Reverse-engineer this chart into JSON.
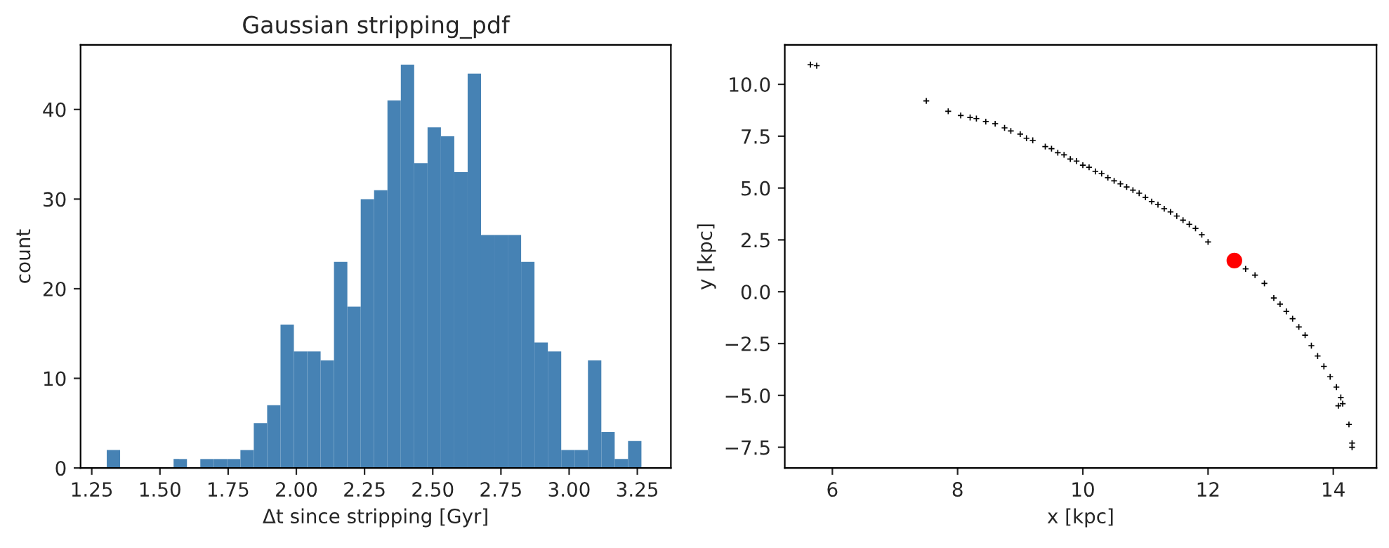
{
  "chart_data": [
    {
      "type": "histogram",
      "title": "Gaussian stripping_pdf",
      "xlabel": "Δt since stripping [Gyr]",
      "ylabel": "count",
      "color": "#4682b4",
      "bins": [
        1.305,
        1.354,
        1.403,
        1.452,
        1.501,
        1.55,
        1.599,
        1.648,
        1.697,
        1.746,
        1.795,
        1.844,
        1.893,
        1.942,
        1.991,
        2.04,
        2.089,
        2.138,
        2.187,
        2.236,
        2.285,
        2.334,
        2.383,
        2.432,
        2.481,
        2.53,
        2.579,
        2.628,
        2.677,
        2.726,
        2.775,
        2.824,
        2.873,
        2.922,
        2.971,
        3.02,
        3.069,
        3.118,
        3.167,
        3.216,
        3.265
      ],
      "values": [
        2,
        0,
        0,
        0,
        0,
        1,
        0,
        1,
        1,
        1,
        2,
        5,
        7,
        16,
        13,
        13,
        12,
        23,
        18,
        30,
        31,
        41,
        45,
        34,
        38,
        37,
        33,
        44,
        26,
        26,
        26,
        23,
        14,
        13,
        2,
        2,
        12,
        4,
        1,
        3
      ],
      "xlim": [
        1.209,
        3.373
      ],
      "ylim": [
        0,
        47.2
      ],
      "xticks": [
        {
          "value": 1.25,
          "label": "1.25"
        },
        {
          "value": 1.5,
          "label": "1.50"
        },
        {
          "value": 1.75,
          "label": "1.75"
        },
        {
          "value": 2.0,
          "label": "2.00"
        },
        {
          "value": 2.25,
          "label": "2.25"
        },
        {
          "value": 2.5,
          "label": "2.50"
        },
        {
          "value": 2.75,
          "label": "2.75"
        },
        {
          "value": 3.0,
          "label": "3.00"
        },
        {
          "value": 3.25,
          "label": "3.25"
        }
      ],
      "yticks": [
        0,
        10,
        20,
        30,
        40
      ]
    },
    {
      "type": "scatter",
      "xlabel": "x [kpc]",
      "ylabel": "y [kpc]",
      "series": [
        {
          "color": "#000000",
          "marker": "cross",
          "x": [
            5.65,
            5.75,
            7.5,
            7.85,
            8.05,
            8.2,
            8.3,
            8.45,
            8.6,
            8.75,
            8.85,
            9.0,
            9.1,
            9.2,
            9.4,
            9.5,
            9.6,
            9.7,
            9.8,
            9.9,
            10.0,
            10.1,
            10.2,
            10.3,
            10.4,
            10.5,
            10.6,
            10.7,
            10.8,
            10.9,
            11.0,
            11.1,
            11.2,
            11.3,
            11.4,
            11.5,
            11.6,
            11.7,
            11.8,
            11.9,
            12.0,
            12.6,
            12.75,
            12.9,
            13.05,
            13.15,
            13.25,
            13.35,
            13.45,
            13.55,
            13.65,
            13.75,
            13.85,
            13.95,
            14.05,
            14.12,
            14.15,
            14.08,
            14.25,
            14.3,
            14.3
          ],
          "values": [
            10.95,
            10.9,
            9.2,
            8.7,
            8.5,
            8.4,
            8.35,
            8.2,
            8.1,
            7.9,
            7.75,
            7.6,
            7.4,
            7.3,
            7.0,
            6.9,
            6.7,
            6.6,
            6.4,
            6.3,
            6.1,
            6.0,
            5.8,
            5.7,
            5.5,
            5.35,
            5.2,
            5.05,
            4.9,
            4.75,
            4.55,
            4.35,
            4.2,
            4.0,
            3.85,
            3.65,
            3.45,
            3.25,
            3.05,
            2.75,
            2.4,
            1.1,
            0.8,
            0.4,
            -0.3,
            -0.6,
            -0.95,
            -1.3,
            -1.7,
            -2.1,
            -2.6,
            -3.1,
            -3.6,
            -4.1,
            -4.6,
            -5.1,
            -5.4,
            -5.5,
            -6.4,
            -7.5,
            -7.3
          ]
        },
        {
          "color": "#ff0000",
          "marker": "circle",
          "x": [
            12.42
          ],
          "values": [
            1.5
          ]
        }
      ],
      "xlim": [
        5.24,
        14.69
      ],
      "ylim": [
        -8.5,
        11.9
      ],
      "xticks": [
        6,
        8,
        10,
        12,
        14
      ],
      "yticks": [
        {
          "value": -7.5,
          "label": "−7.5"
        },
        {
          "value": -5.0,
          "label": "−5.0"
        },
        {
          "value": -2.5,
          "label": "−2.5"
        },
        {
          "value": 0.0,
          "label": "0.0"
        },
        {
          "value": 2.5,
          "label": "2.5"
        },
        {
          "value": 5.0,
          "label": "5.0"
        },
        {
          "value": 7.5,
          "label": "7.5"
        },
        {
          "value": 10.0,
          "label": "10.0"
        }
      ]
    }
  ]
}
